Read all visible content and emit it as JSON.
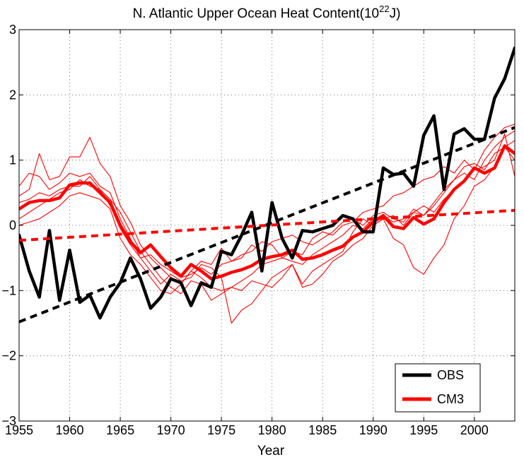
{
  "chart_data": {
    "type": "line",
    "title": {
      "prefix": "N. Atlantic Upper Ocean Heat Content(10",
      "superscript": "22",
      "suffix": "J)"
    },
    "xlabel": "Year",
    "ylabel": "",
    "xlim": [
      1955,
      2004
    ],
    "ylim": [
      -3,
      3
    ],
    "xticks": [
      1955,
      1960,
      1965,
      1970,
      1975,
      1980,
      1985,
      1990,
      1995,
      2000
    ],
    "yticks": [
      -3,
      -2,
      -1,
      0,
      1,
      2,
      3
    ],
    "grid": true,
    "legend_position": "bottom-right",
    "legend": [
      {
        "label": "OBS",
        "color": "#000000"
      },
      {
        "label": "CM3",
        "color": "#ff0000"
      }
    ],
    "colors": {
      "obs": "#000000",
      "cm3": "#ff0000"
    },
    "x": [
      1955,
      1956,
      1957,
      1958,
      1959,
      1960,
      1961,
      1962,
      1963,
      1964,
      1965,
      1966,
      1967,
      1968,
      1969,
      1970,
      1971,
      1972,
      1973,
      1974,
      1975,
      1976,
      1977,
      1978,
      1979,
      1980,
      1981,
      1982,
      1983,
      1984,
      1985,
      1986,
      1987,
      1988,
      1989,
      1990,
      1991,
      1992,
      1993,
      1994,
      1995,
      1996,
      1997,
      1998,
      1999,
      2000,
      2001,
      2002,
      2003,
      2004
    ],
    "series": [
      {
        "name": "OBS",
        "role": "obs",
        "values": [
          -0.15,
          -0.7,
          -1.1,
          -0.08,
          -1.15,
          -0.38,
          -1.18,
          -1.07,
          -1.42,
          -1.1,
          -0.88,
          -0.5,
          -0.82,
          -1.27,
          -1.1,
          -0.82,
          -0.88,
          -1.23,
          -0.88,
          -0.95,
          -0.4,
          -0.45,
          -0.15,
          0.2,
          -0.7,
          0.35,
          -0.2,
          -0.5,
          -0.08,
          -0.1,
          -0.05,
          0.0,
          0.15,
          0.1,
          -0.1,
          -0.1,
          0.88,
          0.78,
          0.8,
          0.6,
          1.38,
          1.68,
          0.55,
          1.4,
          1.48,
          1.32,
          1.32,
          1.95,
          2.25,
          2.72
        ]
      },
      {
        "name": "CM3",
        "role": "cm3-mean",
        "values": [
          0.25,
          0.35,
          0.38,
          0.38,
          0.42,
          0.62,
          0.65,
          0.65,
          0.5,
          0.35,
          0.0,
          -0.25,
          -0.42,
          -0.3,
          -0.48,
          -0.65,
          -0.78,
          -0.6,
          -0.7,
          -0.82,
          -0.78,
          -0.72,
          -0.68,
          -0.62,
          -0.52,
          -0.48,
          -0.45,
          -0.38,
          -0.52,
          -0.5,
          -0.45,
          -0.38,
          -0.32,
          -0.18,
          -0.1,
          0.05,
          0.15,
          -0.02,
          -0.05,
          0.12,
          0.02,
          0.1,
          0.35,
          0.55,
          0.68,
          0.88,
          0.8,
          0.88,
          1.22,
          1.1
        ]
      },
      {
        "name": "",
        "role": "cm3-member",
        "values": [
          0.45,
          0.55,
          1.1,
          0.7,
          0.75,
          1.05,
          1.05,
          1.35,
          0.95,
          0.75,
          0.3,
          0.05,
          -0.3,
          -0.5,
          -0.65,
          -0.8,
          -0.9,
          -0.7,
          -0.55,
          -0.6,
          -0.35,
          -0.55,
          -0.45,
          -0.4,
          -0.25,
          -0.3,
          -0.5,
          -0.4,
          -0.45,
          -0.2,
          -0.1,
          -0.15,
          0.0,
          0.05,
          0.2,
          0.25,
          0.3,
          0.45,
          0.5,
          0.6,
          0.7,
          0.75,
          0.9,
          0.8,
          1.0,
          0.85,
          1.15,
          1.35,
          1.5,
          1.55
        ]
      },
      {
        "name": "",
        "role": "cm3-member",
        "values": [
          0.6,
          0.8,
          0.75,
          0.55,
          0.65,
          0.8,
          0.75,
          0.8,
          0.6,
          0.5,
          0.1,
          -0.2,
          -0.5,
          -0.7,
          -0.9,
          -0.75,
          -0.85,
          -0.8,
          -0.6,
          -0.65,
          -0.8,
          -1.5,
          -1.3,
          -1.2,
          -1.0,
          -0.8,
          -0.7,
          -0.6,
          -0.9,
          -0.7,
          -0.6,
          -0.5,
          -0.4,
          -0.1,
          0.1,
          0.0,
          0.1,
          -0.2,
          -0.3,
          -0.65,
          -0.75,
          -0.5,
          -0.3,
          0.1,
          0.3,
          0.6,
          0.7,
          0.9,
          1.2,
          1.0
        ]
      },
      {
        "name": "",
        "role": "cm3-member",
        "values": [
          0.1,
          0.2,
          0.3,
          0.4,
          0.5,
          0.55,
          0.7,
          0.6,
          0.55,
          0.4,
          0.2,
          -0.1,
          -0.4,
          -0.6,
          -0.8,
          -0.95,
          -1.05,
          -0.85,
          -0.9,
          -1.15,
          -1.05,
          -0.95,
          -1.0,
          -0.85,
          -0.9,
          -0.95,
          -0.8,
          -0.6,
          -0.95,
          -0.9,
          -0.75,
          -0.55,
          -0.45,
          -0.3,
          -0.2,
          0.0,
          0.1,
          0.15,
          0.0,
          0.2,
          0.3,
          0.2,
          0.4,
          0.55,
          0.7,
          0.85,
          0.9,
          1.0,
          1.4,
          0.75
        ]
      },
      {
        "name": "",
        "role": "cm3-member",
        "values": [
          0.0,
          0.05,
          0.1,
          0.2,
          0.3,
          0.45,
          0.5,
          0.45,
          0.4,
          0.25,
          -0.2,
          -0.45,
          -0.6,
          -0.8,
          -1.0,
          -1.05,
          -0.9,
          -0.7,
          -0.8,
          -0.95,
          -1.0,
          -0.95,
          -0.85,
          -0.75,
          -0.6,
          -0.55,
          -0.5,
          -0.55,
          -0.6,
          -0.45,
          -0.35,
          -0.25,
          -0.15,
          0.0,
          -0.05,
          0.1,
          0.15,
          0.05,
          0.1,
          0.2,
          0.15,
          0.3,
          0.5,
          0.7,
          0.9,
          0.95,
          0.85,
          1.1,
          1.2,
          1.3
        ]
      },
      {
        "name": "",
        "role": "cm3-member",
        "values": [
          0.35,
          0.4,
          0.5,
          0.45,
          0.55,
          0.6,
          0.6,
          0.75,
          0.55,
          0.3,
          -0.05,
          -0.3,
          -0.5,
          -0.45,
          -0.6,
          -0.7,
          -0.8,
          -0.75,
          -0.65,
          -0.75,
          -0.6,
          -0.55,
          -0.5,
          -0.3,
          -0.4,
          -0.25,
          -0.2,
          -0.15,
          -0.25,
          -0.3,
          -0.2,
          -0.1,
          0.05,
          0.1,
          0.0,
          0.15,
          0.2,
          0.1,
          0.05,
          0.25,
          0.15,
          0.35,
          0.55,
          0.7,
          0.8,
          0.7,
          1.0,
          1.2,
          1.35,
          1.45
        ]
      }
    ],
    "trends": [
      {
        "role": "obs-trend",
        "x": [
          1955,
          2004
        ],
        "values": [
          -1.48,
          1.5
        ]
      },
      {
        "role": "cm3-trend",
        "x": [
          1955,
          2004
        ],
        "values": [
          -0.23,
          0.23
        ]
      }
    ]
  }
}
